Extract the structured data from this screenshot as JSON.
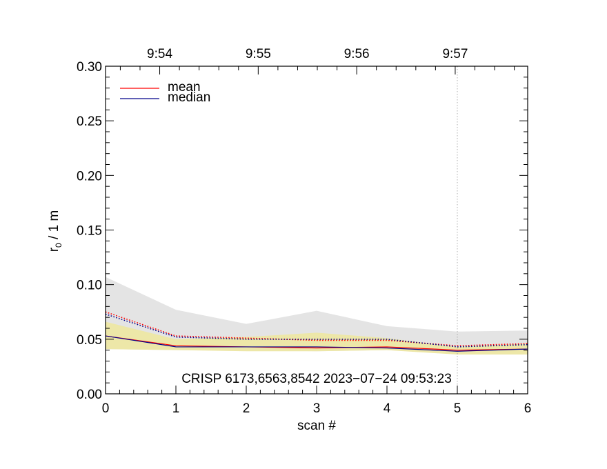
{
  "chart_data": {
    "type": "line",
    "xlabel": "scan #",
    "ylabel": {
      "base": "r",
      "sub": "0",
      "rest": " / 1 m"
    },
    "xlim": [
      0,
      6
    ],
    "ylim": [
      0,
      0.3
    ],
    "x_ticks": [
      0,
      1,
      2,
      3,
      4,
      5,
      6
    ],
    "x_tick_labels": [
      "0",
      "1",
      "2",
      "3",
      "4",
      "5",
      "6"
    ],
    "y_ticks": [
      0.0,
      0.05,
      0.1,
      0.15,
      0.2,
      0.25,
      0.3
    ],
    "y_tick_labels": [
      "0.00",
      "0.05",
      "0.10",
      "0.15",
      "0.20",
      "0.25",
      "0.30"
    ],
    "top_axis_ticks": [
      0.77,
      2.17,
      3.57,
      4.97
    ],
    "top_axis_labels": [
      "9:54",
      "9:55",
      "9:56",
      "9:57"
    ],
    "vertical_marker_x": 5,
    "annotation": "CRISP 6173,6563,8542 2023−07−24 09:53:23",
    "legend": {
      "placement": "top-left",
      "entries": [
        {
          "label": "mean",
          "color": "#ff0000"
        },
        {
          "label": "median",
          "color": "#00008b"
        }
      ]
    },
    "x": [
      0,
      1,
      2,
      3,
      4,
      5,
      6
    ],
    "series": [
      {
        "name": "mean",
        "style": "solid",
        "color": "#ff0000",
        "values": [
          0.053,
          0.044,
          0.043,
          0.042,
          0.043,
          0.04,
          0.041
        ]
      },
      {
        "name": "median",
        "style": "solid",
        "color": "#00008b",
        "values": [
          0.053,
          0.043,
          0.043,
          0.043,
          0.042,
          0.039,
          0.041
        ]
      },
      {
        "style": "dotted",
        "color": "#ff0000",
        "values": [
          0.075,
          0.053,
          0.051,
          0.049,
          0.049,
          0.044,
          0.046
        ]
      },
      {
        "style": "dotted",
        "color": "#00008b",
        "values": [
          0.073,
          0.052,
          0.05,
          0.05,
          0.05,
          0.043,
          0.045
        ]
      }
    ],
    "bands": [
      {
        "color": "#e4e4e4",
        "lower": [
          0.041,
          0.04,
          0.04,
          0.039,
          0.04,
          0.037,
          0.037
        ],
        "upper": [
          0.107,
          0.077,
          0.064,
          0.076,
          0.062,
          0.057,
          0.058
        ]
      },
      {
        "color": "#ede7a8",
        "lower": [
          0.041,
          0.04,
          0.039,
          0.039,
          0.04,
          0.036,
          0.036
        ],
        "upper": [
          0.066,
          0.05,
          0.052,
          0.056,
          0.051,
          0.043,
          0.046
        ]
      }
    ]
  }
}
